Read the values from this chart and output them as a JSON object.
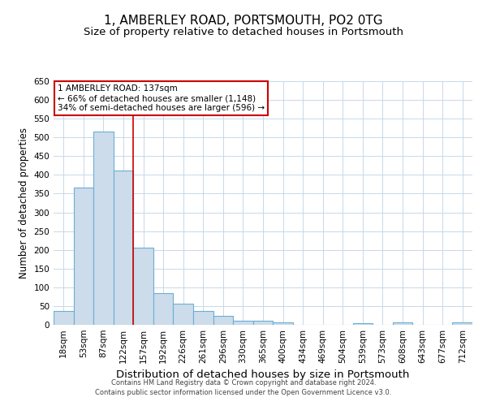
{
  "title": "1, AMBERLEY ROAD, PORTSMOUTH, PO2 0TG",
  "subtitle": "Size of property relative to detached houses in Portsmouth",
  "xlabel": "Distribution of detached houses by size in Portsmouth",
  "ylabel": "Number of detached properties",
  "categories": [
    "18sqm",
    "53sqm",
    "87sqm",
    "122sqm",
    "157sqm",
    "192sqm",
    "226sqm",
    "261sqm",
    "296sqm",
    "330sqm",
    "365sqm",
    "400sqm",
    "434sqm",
    "469sqm",
    "504sqm",
    "539sqm",
    "573sqm",
    "608sqm",
    "643sqm",
    "677sqm",
    "712sqm"
  ],
  "values": [
    37,
    367,
    515,
    412,
    206,
    84,
    57,
    36,
    23,
    10,
    10,
    7,
    0,
    0,
    0,
    5,
    0,
    7,
    0,
    0,
    6
  ],
  "bar_color": "#ccdcea",
  "bar_edge_color": "#6baed6",
  "vline_bin_index": 3.5,
  "annotation_text": "1 AMBERLEY ROAD: 137sqm\n← 66% of detached houses are smaller (1,148)\n34% of semi-detached houses are larger (596) →",
  "annotation_box_color": "#ffffff",
  "annotation_box_edge_color": "#cc0000",
  "vline_color": "#cc0000",
  "ylim": [
    0,
    650
  ],
  "yticks": [
    0,
    50,
    100,
    150,
    200,
    250,
    300,
    350,
    400,
    450,
    500,
    550,
    600,
    650
  ],
  "title_fontsize": 11,
  "subtitle_fontsize": 9.5,
  "xlabel_fontsize": 9.5,
  "ylabel_fontsize": 8.5,
  "tick_fontsize": 7.5,
  "ann_fontsize": 7.5,
  "footer_line1": "Contains HM Land Registry data © Crown copyright and database right 2024.",
  "footer_line2": "Contains public sector information licensed under the Open Government Licence v3.0.",
  "background_color": "#ffffff",
  "grid_color": "#c8d8e8"
}
